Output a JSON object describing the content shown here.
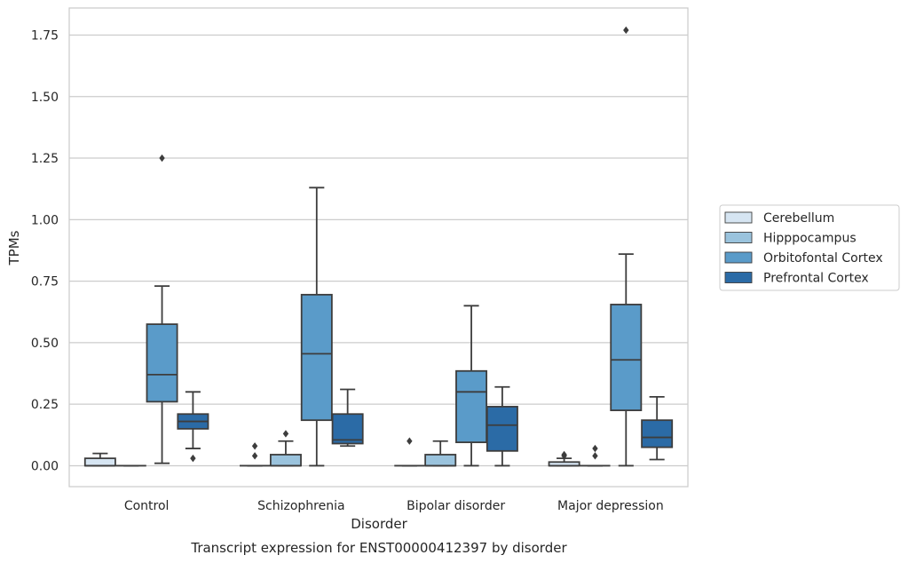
{
  "chart_data": {
    "type": "box",
    "caption": "Transcript expression for ENST00000412397 by disorder",
    "xlabel": "Disorder",
    "ylabel": "TPMs",
    "ylim": [
      -0.085,
      1.86
    ],
    "yticks": [
      "0.00",
      "0.25",
      "0.50",
      "0.75",
      "1.00",
      "1.25",
      "1.50",
      "1.75"
    ],
    "ytick_values": [
      0,
      0.25,
      0.5,
      0.75,
      1.0,
      1.25,
      1.5,
      1.75
    ],
    "grid": true,
    "legend_position": "right",
    "categories": [
      "Control",
      "Schizophrenia",
      "Bipolar disorder",
      "Major depression"
    ],
    "series": [
      {
        "name": "Cerebellum",
        "color": "#d6e5f2",
        "boxes": [
          {
            "whisker_low": 0,
            "q1": 0,
            "median": 0,
            "q3": 0.03,
            "whisker_high": 0.05,
            "outliers": []
          },
          {
            "whisker_low": 0,
            "q1": 0,
            "median": 0,
            "q3": 0,
            "whisker_high": 0,
            "outliers": [
              0.04,
              0.08
            ]
          },
          {
            "whisker_low": 0,
            "q1": 0,
            "median": 0,
            "q3": 0,
            "whisker_high": 0,
            "outliers": [
              0.1
            ]
          },
          {
            "whisker_low": 0,
            "q1": 0,
            "median": 0,
            "q3": 0.015,
            "whisker_high": 0.03,
            "outliers": [
              0.04,
              0.045
            ]
          }
        ]
      },
      {
        "name": "Hipppocampus",
        "color": "#9ac3dd",
        "boxes": [
          {
            "whisker_low": 0,
            "q1": 0,
            "median": 0,
            "q3": 0,
            "whisker_high": 0,
            "outliers": []
          },
          {
            "whisker_low": 0,
            "q1": 0,
            "median": 0,
            "q3": 0.045,
            "whisker_high": 0.1,
            "outliers": [
              0.13
            ]
          },
          {
            "whisker_low": 0,
            "q1": 0,
            "median": 0,
            "q3": 0.045,
            "whisker_high": 0.1,
            "outliers": []
          },
          {
            "whisker_low": 0,
            "q1": 0,
            "median": 0,
            "q3": 0,
            "whisker_high": 0,
            "outliers": [
              0.04,
              0.07
            ]
          }
        ]
      },
      {
        "name": "Orbitofontal Cortex",
        "color": "#5a9bc9",
        "boxes": [
          {
            "whisker_low": 0.01,
            "q1": 0.26,
            "median": 0.37,
            "q3": 0.575,
            "whisker_high": 0.73,
            "outliers": [
              1.25
            ]
          },
          {
            "whisker_low": 0,
            "q1": 0.185,
            "median": 0.455,
            "q3": 0.695,
            "whisker_high": 1.13,
            "outliers": []
          },
          {
            "whisker_low": 0,
            "q1": 0.095,
            "median": 0.3,
            "q3": 0.385,
            "whisker_high": 0.65,
            "outliers": []
          },
          {
            "whisker_low": 0,
            "q1": 0.225,
            "median": 0.43,
            "q3": 0.655,
            "whisker_high": 0.86,
            "outliers": [
              1.77
            ]
          }
        ]
      },
      {
        "name": "Prefrontal Cortex",
        "color": "#2b6ba6",
        "boxes": [
          {
            "whisker_low": 0.07,
            "q1": 0.15,
            "median": 0.18,
            "q3": 0.21,
            "whisker_high": 0.3,
            "outliers": [
              0.03
            ]
          },
          {
            "whisker_low": 0.08,
            "q1": 0.09,
            "median": 0.105,
            "q3": 0.21,
            "whisker_high": 0.31,
            "outliers": []
          },
          {
            "whisker_low": 0,
            "q1": 0.06,
            "median": 0.165,
            "q3": 0.24,
            "whisker_high": 0.32,
            "outliers": []
          },
          {
            "whisker_low": 0.025,
            "q1": 0.075,
            "median": 0.115,
            "q3": 0.185,
            "whisker_high": 0.28,
            "outliers": []
          }
        ]
      }
    ]
  }
}
